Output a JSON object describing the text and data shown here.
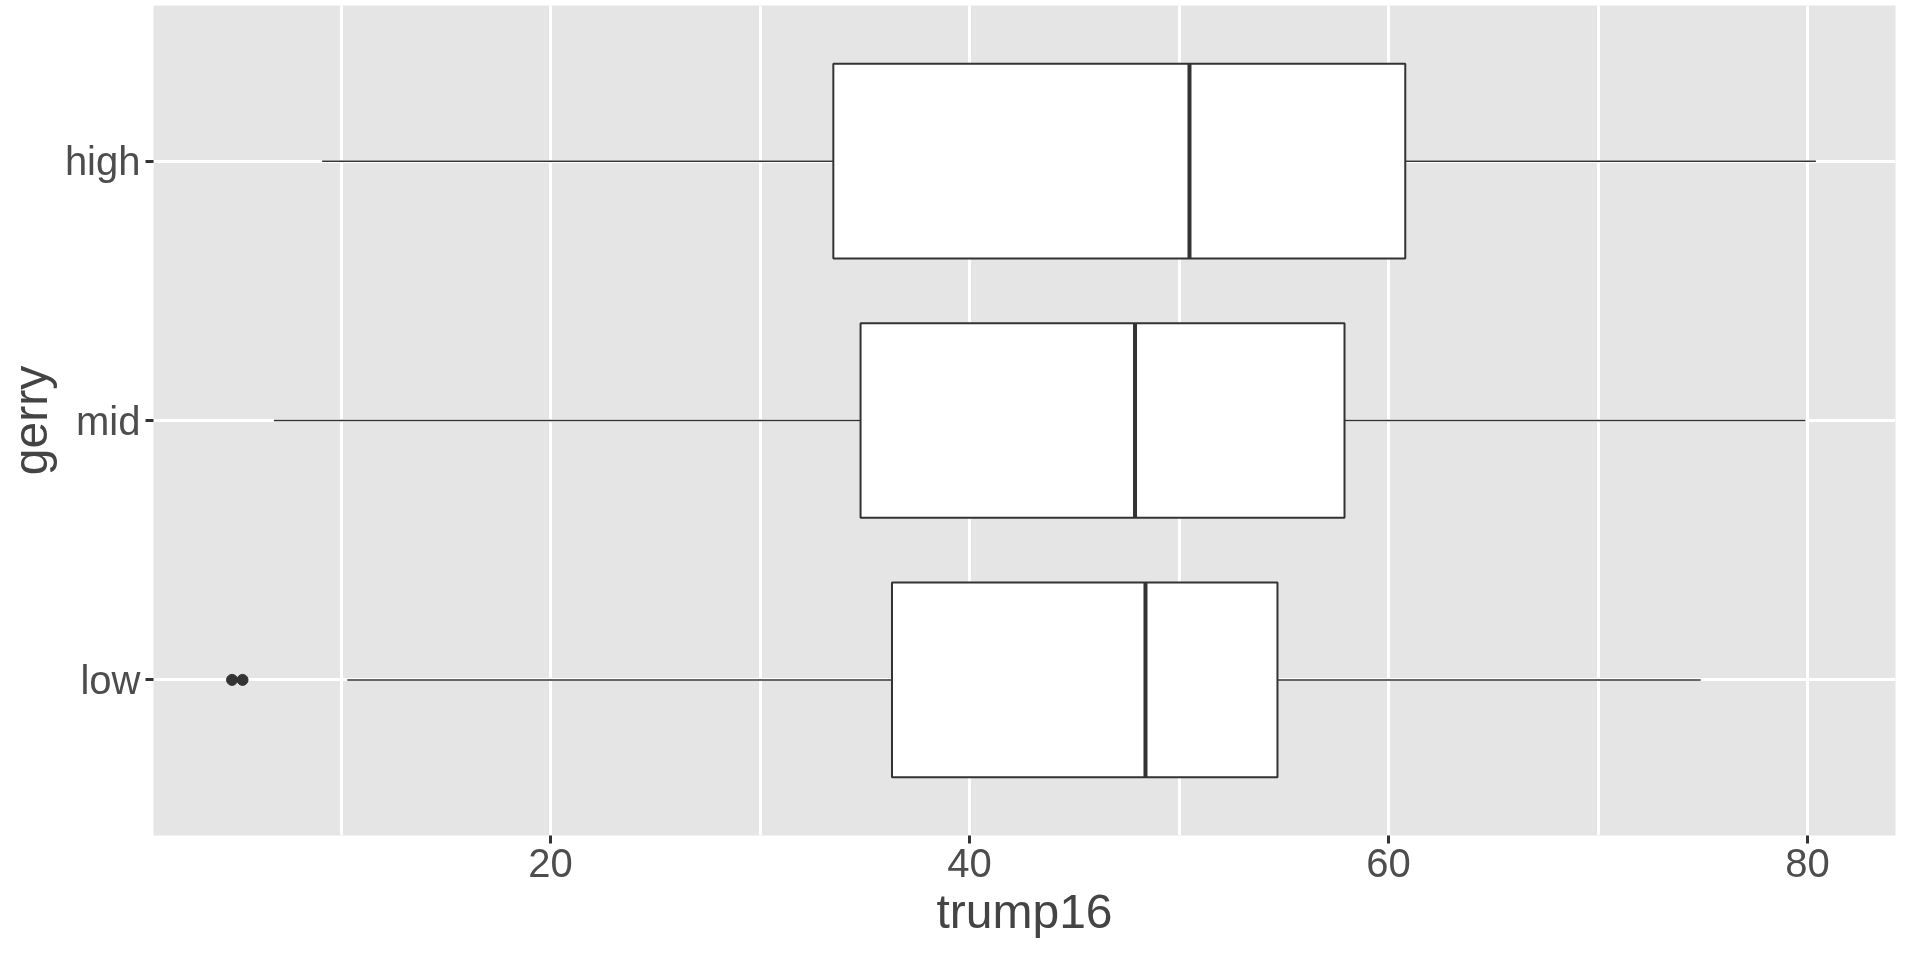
{
  "chart_data": {
    "type": "box",
    "orientation": "horizontal",
    "xlabel": "trump16",
    "ylabel": "gerry",
    "categories": [
      "high",
      "mid",
      "low"
    ],
    "boxes": [
      {
        "low": 9.1,
        "q1": 33.5,
        "median": 50.5,
        "q3": 60.8,
        "high": 80.4
      },
      {
        "low": 6.8,
        "q1": 34.8,
        "median": 47.9,
        "q3": 57.9,
        "high": 79.9
      },
      {
        "low": 10.3,
        "q1": 36.3,
        "median": 48.4,
        "q3": 54.7,
        "high": 74.9,
        "outliers": [
          4.8,
          5.3
        ]
      }
    ],
    "color": "#ffffff",
    "xlim": [
      1.05,
      84.2
    ],
    "xticks": [
      {
        "value": 10,
        "label": null
      },
      20,
      {
        "value": 30,
        "label": null
      },
      40,
      {
        "value": 50,
        "label": null
      },
      60,
      {
        "value": 70,
        "label": null
      },
      80
    ],
    "grid": true
  }
}
